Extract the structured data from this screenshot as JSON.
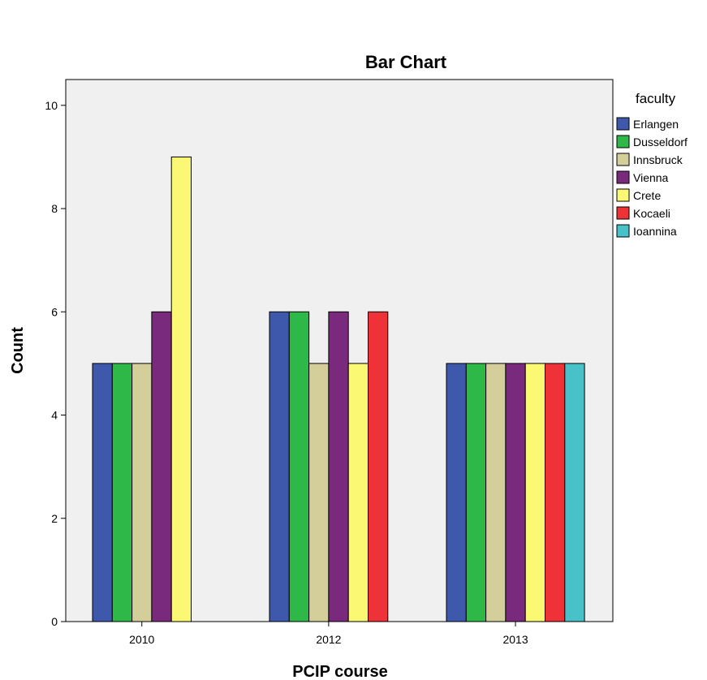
{
  "chart_data": {
    "type": "bar",
    "title": "Bar Chart",
    "xlabel": "PCIP course",
    "ylabel": "Count",
    "categories": [
      "2010",
      "2012",
      "2013"
    ],
    "yticks": [
      "0",
      "2",
      "4",
      "6",
      "8",
      "10"
    ],
    "ylim": [
      0,
      10.5
    ],
    "grid": false,
    "legend": {
      "title": "faculty",
      "placement": "right"
    },
    "plot_background": "#f0f0f0",
    "series": [
      {
        "name": "Erlangen",
        "color": "#3e58ac",
        "values": [
          5,
          6,
          5
        ]
      },
      {
        "name": "Dusseldorf",
        "color": "#2eb848",
        "values": [
          5,
          6,
          5
        ]
      },
      {
        "name": "Innsbruck",
        "color": "#d4cf9a",
        "values": [
          5,
          5,
          5
        ]
      },
      {
        "name": "Vienna",
        "color": "#7a2a7d",
        "values": [
          6,
          6,
          5
        ]
      },
      {
        "name": "Crete",
        "color": "#fbf873",
        "values": [
          9,
          5,
          5
        ]
      },
      {
        "name": "Kocaeli",
        "color": "#ee3237",
        "values": [
          null,
          6,
          5
        ]
      },
      {
        "name": "Ioannina",
        "color": "#48c1c9",
        "values": [
          null,
          null,
          5
        ]
      }
    ]
  }
}
